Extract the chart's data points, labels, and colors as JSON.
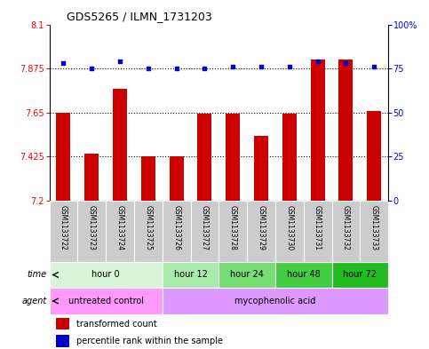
{
  "title": "GDS5265 / ILMN_1731203",
  "samples": [
    "GSM1133722",
    "GSM1133723",
    "GSM1133724",
    "GSM1133725",
    "GSM1133726",
    "GSM1133727",
    "GSM1133728",
    "GSM1133729",
    "GSM1133730",
    "GSM1133731",
    "GSM1133732",
    "GSM1133733"
  ],
  "transformed_count": [
    7.65,
    7.44,
    7.77,
    7.425,
    7.425,
    7.645,
    7.645,
    7.53,
    7.645,
    7.92,
    7.92,
    7.66
  ],
  "percentile_rank": [
    78,
    75,
    79,
    75,
    75,
    75,
    76,
    76,
    76,
    79,
    78,
    76
  ],
  "ylim_left": [
    7.2,
    8.1
  ],
  "yticks_left": [
    7.2,
    7.425,
    7.65,
    7.875,
    8.1
  ],
  "yticks_right": [
    0,
    25,
    50,
    75,
    100
  ],
  "bar_color": "#cc0000",
  "dot_color": "#0000cc",
  "time_groups": [
    {
      "label": "hour 0",
      "start": 0,
      "end": 4,
      "color": "#d9f5d9"
    },
    {
      "label": "hour 12",
      "start": 4,
      "end": 6,
      "color": "#aaeaaa"
    },
    {
      "label": "hour 24",
      "start": 6,
      "end": 8,
      "color": "#77dd77"
    },
    {
      "label": "hour 48",
      "start": 8,
      "end": 10,
      "color": "#44cc44"
    },
    {
      "label": "hour 72",
      "start": 10,
      "end": 12,
      "color": "#22bb22"
    }
  ],
  "agent_groups": [
    {
      "label": "untreated control",
      "start": 0,
      "end": 4,
      "color": "#ff99ff"
    },
    {
      "label": "mycophenolic acid",
      "start": 4,
      "end": 12,
      "color": "#dd99ff"
    }
  ],
  "sample_bg_color": "#cccccc",
  "legend_red_label": "transformed count",
  "legend_blue_label": "percentile rank within the sample",
  "time_label": "time",
  "agent_label": "agent"
}
